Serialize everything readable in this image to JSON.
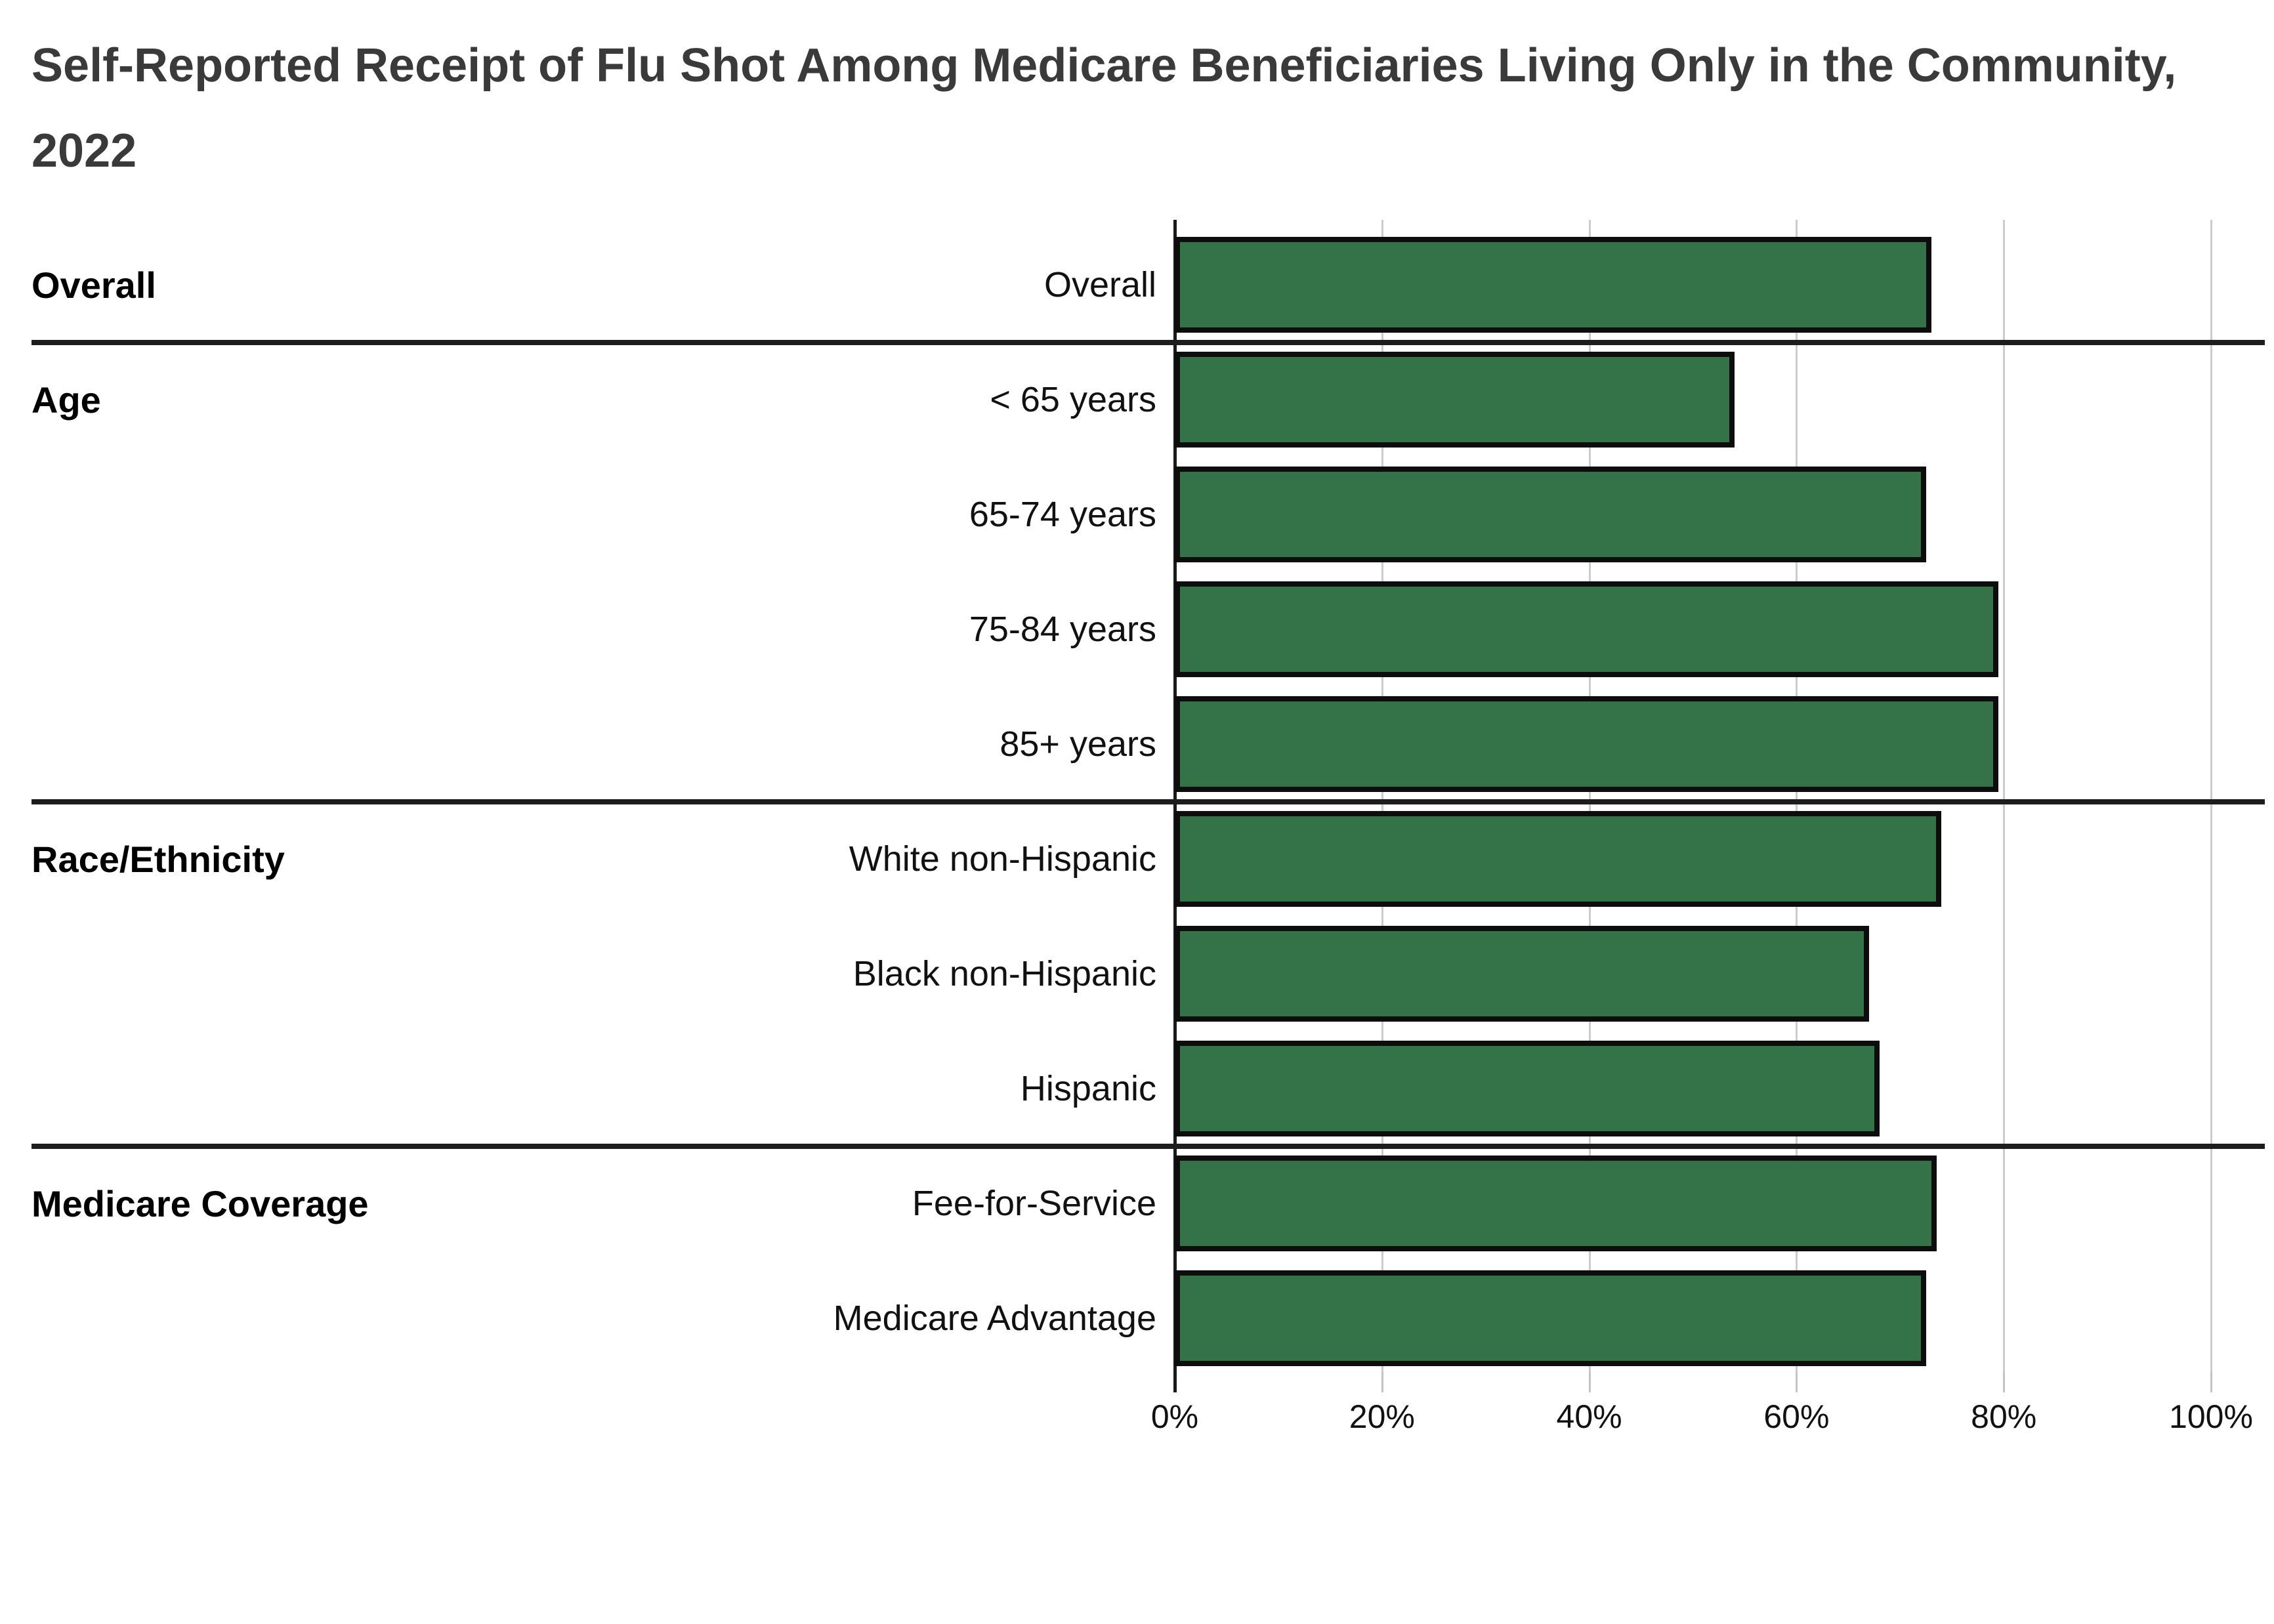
{
  "title": "Self-Reported Receipt of Flu Shot Among Medicare Beneficiaries Living Only in the Community, 2022",
  "chart_data": {
    "type": "bar",
    "orientation": "horizontal",
    "title": "Self-Reported Receipt of Flu Shot Among Medicare Beneficiaries Living Only in the Community, 2022",
    "unit": "percent",
    "xlim": [
      0,
      100
    ],
    "x_ticks": [
      "0%",
      "20%",
      "40%",
      "60%",
      "80%",
      "100%"
    ],
    "x_tick_values": [
      0,
      20,
      40,
      60,
      80,
      100
    ],
    "grid": true,
    "bar_color": "#337347",
    "bar_border_color": "#0d0d0d",
    "groups": [
      {
        "name": "Overall",
        "items": [
          {
            "label": "Overall",
            "value": 73
          }
        ]
      },
      {
        "name": "Age",
        "items": [
          {
            "label": "< 65 years",
            "value": 54
          },
          {
            "label": "65-74 years",
            "value": 72.5
          },
          {
            "label": "75-84 years",
            "value": 79.5
          },
          {
            "label": "85+ years",
            "value": 79.5
          }
        ]
      },
      {
        "name": "Race/Ethnicity",
        "items": [
          {
            "label": "White non-Hispanic",
            "value": 74
          },
          {
            "label": "Black non-Hispanic",
            "value": 67
          },
          {
            "label": "Hispanic",
            "value": 68
          }
        ]
      },
      {
        "name": "Medicare Coverage",
        "items": [
          {
            "label": "Fee-for-Service",
            "value": 73.5
          },
          {
            "label": "Medicare Advantage",
            "value": 72.5
          }
        ]
      }
    ]
  }
}
